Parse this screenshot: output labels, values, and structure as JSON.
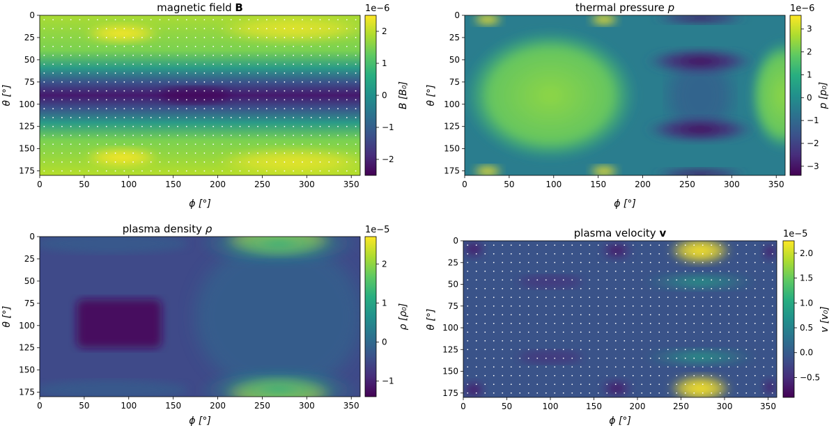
{
  "chart_data": [
    {
      "type": "heatmap",
      "title": "magnetic field B",
      "title_plain": "magnetic field ",
      "title_bold": "B",
      "xlabel": "ϕ [°]",
      "ylabel": "θ [°]",
      "xlim": [
        0,
        360
      ],
      "ylim": [
        180,
        0
      ],
      "xticks": [
        "0",
        "50",
        "100",
        "150",
        "200",
        "250",
        "300",
        "350"
      ],
      "yticks": [
        "0",
        "25",
        "50",
        "75",
        "100",
        "125",
        "150",
        "175"
      ],
      "colorbar": {
        "label": "B [B₀]",
        "offset": "1e−6",
        "range": [
          -2.5,
          2.5
        ],
        "ticks": [
          "−2",
          "−1",
          "0",
          "1",
          "2"
        ],
        "tick_values": [
          -2,
          -1,
          0,
          1,
          2
        ]
      },
      "has_quiver_dots": true
    },
    {
      "type": "heatmap",
      "title": "thermal pressure p",
      "title_plain": "thermal pressure ",
      "title_italic": "p",
      "xlabel": "ϕ [°]",
      "ylabel": "θ [°]",
      "xlim": [
        0,
        360
      ],
      "ylim": [
        180,
        0
      ],
      "xticks": [
        "0",
        "50",
        "100",
        "150",
        "200",
        "250",
        "300",
        "350"
      ],
      "yticks": [
        "0",
        "25",
        "50",
        "75",
        "100",
        "125",
        "150",
        "175"
      ],
      "colorbar": {
        "label": "p [p₀]",
        "offset": "1e−6",
        "range": [
          -3.4,
          3.6
        ],
        "ticks": [
          "−3",
          "−2",
          "−1",
          "0",
          "1",
          "2",
          "3"
        ],
        "tick_values": [
          -3,
          -2,
          -1,
          0,
          1,
          2,
          3
        ]
      },
      "has_quiver_dots": false
    },
    {
      "type": "heatmap",
      "title": "plasma density ρ",
      "title_plain": "plasma density ",
      "title_italic": "ρ",
      "xlabel": "ϕ [°]",
      "ylabel": "θ [°]",
      "xlim": [
        0,
        360
      ],
      "ylim": [
        180,
        0
      ],
      "xticks": [
        "0",
        "50",
        "100",
        "150",
        "200",
        "250",
        "300",
        "350"
      ],
      "yticks": [
        "0",
        "25",
        "50",
        "75",
        "100",
        "125",
        "150",
        "175"
      ],
      "colorbar": {
        "label": "ρ [ρ₀]",
        "offset": "1e−5",
        "range": [
          -1.4,
          2.7
        ],
        "ticks": [
          "−1",
          "0",
          "1",
          "2"
        ],
        "tick_values": [
          -1,
          0,
          1,
          2
        ]
      },
      "has_quiver_dots": false
    },
    {
      "type": "heatmap",
      "title": "plasma velocity v",
      "title_plain": "plasma velocity ",
      "title_bold": "v",
      "xlabel": "ϕ [°]",
      "ylabel": "θ [°]",
      "xlim": [
        0,
        360
      ],
      "ylim": [
        180,
        0
      ],
      "xticks": [
        "0",
        "50",
        "100",
        "150",
        "200",
        "250",
        "300",
        "350"
      ],
      "yticks": [
        "0",
        "25",
        "50",
        "75",
        "100",
        "125",
        "150",
        "175"
      ],
      "colorbar": {
        "label": "v [v₀]",
        "offset": "1e−5",
        "range": [
          -0.9,
          2.25
        ],
        "ticks": [
          "−0.5",
          "0.0",
          "0.5",
          "1.0",
          "1.5",
          "2.0"
        ],
        "tick_values": [
          -0.5,
          0.0,
          0.5,
          1.0,
          1.5,
          2.0
        ]
      },
      "has_quiver_dots": true
    }
  ]
}
